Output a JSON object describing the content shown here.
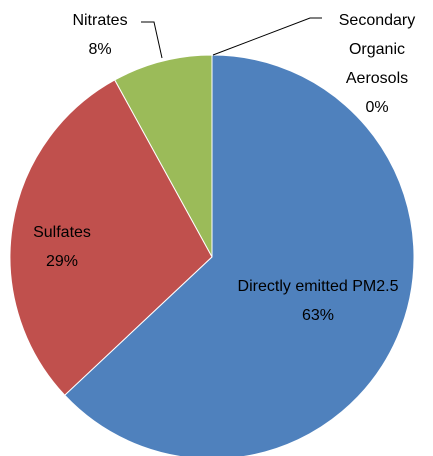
{
  "chart_data": {
    "type": "pie",
    "categories": [
      "Directly emitted PM2.5",
      "Sulfates",
      "Nitrates",
      "Secondary Organic Aerosols"
    ],
    "values": [
      63,
      29,
      8,
      0
    ],
    "value_labels": [
      "63%",
      "29%",
      "8%",
      "0%"
    ],
    "colors": [
      "#4f81bd",
      "#c0504d",
      "#9bbb59",
      "#8064a2"
    ]
  }
}
